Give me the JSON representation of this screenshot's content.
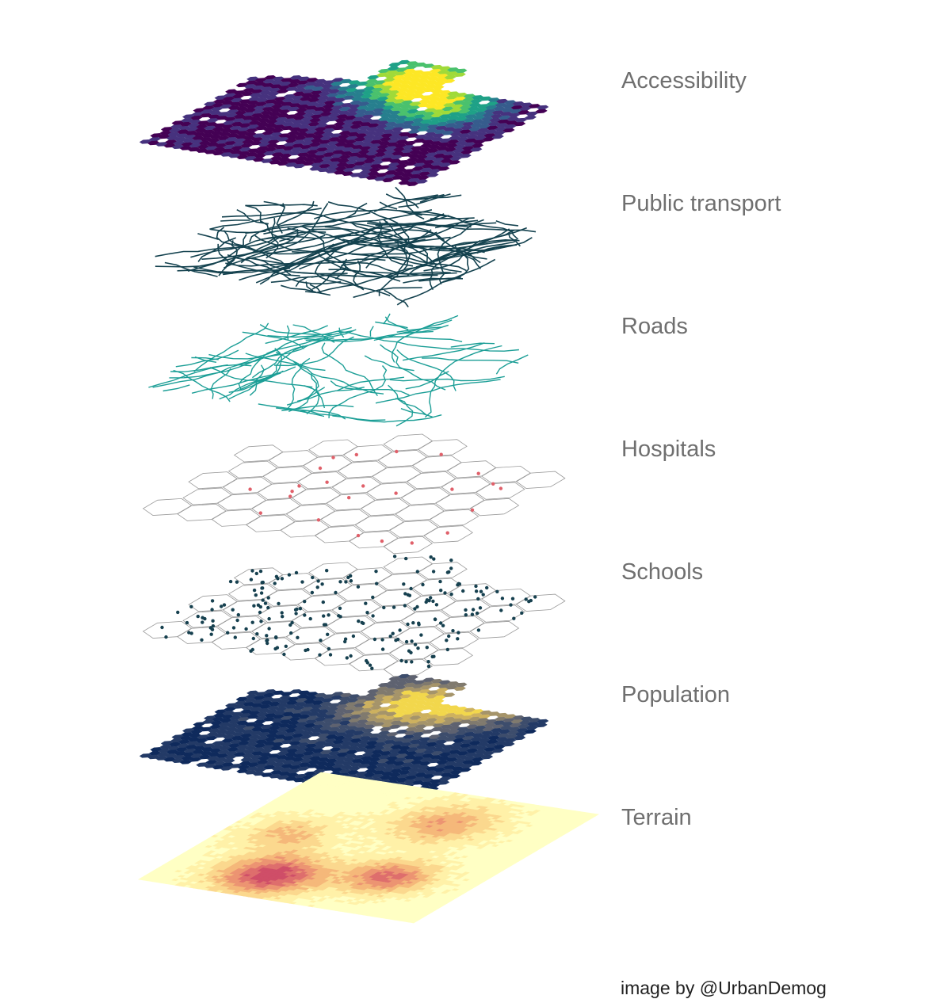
{
  "layers": [
    {
      "label": "Accessibility",
      "kind": "hexfill",
      "palette": [
        "#440154",
        "#46327e",
        "#365c8d",
        "#277f8e",
        "#1fa187",
        "#4ac16d",
        "#a0da39",
        "#fde725"
      ]
    },
    {
      "label": "Public transport",
      "kind": "lines",
      "color": "#14424f"
    },
    {
      "label": "Roads",
      "kind": "lines",
      "color": "#1b9e96"
    },
    {
      "label": "Hospitals",
      "kind": "points",
      "color": "#e0606a"
    },
    {
      "label": "Schools",
      "kind": "points",
      "color": "#16404f"
    },
    {
      "label": "Population",
      "kind": "hexfill",
      "palette": [
        "#0f2a5c",
        "#233a66",
        "#3d4d6c",
        "#5e6270",
        "#807a6e",
        "#a5946a",
        "#cdb15f",
        "#f2d74c"
      ]
    },
    {
      "label": "Terrain",
      "kind": "raster",
      "palette": [
        "#ffffc4",
        "#fff1a8",
        "#fbd88e",
        "#f5b87a",
        "#ec9472",
        "#de6e6d",
        "#cf4e68"
      ]
    }
  ],
  "credit": "image by @UrbanDemog"
}
